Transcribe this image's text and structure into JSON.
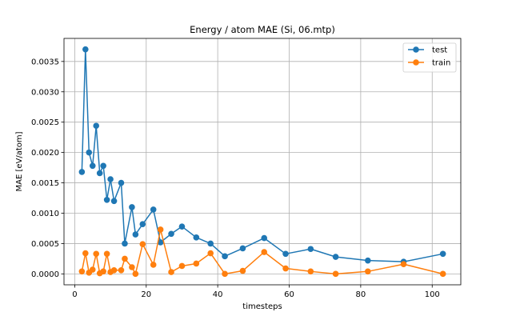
{
  "chart_data": {
    "type": "line",
    "title": "Energy / atom MAE (Si, 06.mtp)",
    "xlabel": "timesteps",
    "ylabel": "MAE [eV/atom]",
    "xlim": [
      -3,
      108
    ],
    "ylim": [
      -0.00018,
      0.00388
    ],
    "x_ticks": [
      0,
      20,
      40,
      60,
      80,
      100
    ],
    "y_ticks": [
      0.0,
      0.0005,
      0.001,
      0.0015,
      0.002,
      0.0025,
      0.003,
      0.0035
    ],
    "x_tick_labels": [
      "0",
      "20",
      "40",
      "60",
      "80",
      "100"
    ],
    "y_tick_labels": [
      "0.0000",
      "0.0005",
      "0.0010",
      "0.0015",
      "0.0020",
      "0.0025",
      "0.0030",
      "0.0035"
    ],
    "grid": true,
    "legend_position": "top-right",
    "series": [
      {
        "name": "test",
        "color": "#1f77b4",
        "x": [
          2,
          3,
          4,
          5,
          6,
          7,
          8,
          9,
          10,
          11,
          13,
          14,
          16,
          17,
          19,
          22,
          24,
          27,
          30,
          34,
          38,
          42,
          47,
          53,
          59,
          66,
          73,
          82,
          92,
          103
        ],
        "y": [
          0.00168,
          0.0037,
          0.002,
          0.00178,
          0.00244,
          0.00166,
          0.00178,
          0.00122,
          0.00156,
          0.0012,
          0.0015,
          0.0005,
          0.0011,
          0.00065,
          0.00082,
          0.00106,
          0.00052,
          0.00066,
          0.00078,
          0.0006,
          0.0005,
          0.00029,
          0.00042,
          0.00059,
          0.00033,
          0.00041,
          0.00028,
          0.00022,
          0.0002,
          0.00033
        ]
      },
      {
        "name": "train",
        "color": "#ff7f0e",
        "x": [
          2,
          3,
          4,
          5,
          6,
          7,
          8,
          9,
          10,
          11,
          13,
          14,
          16,
          17,
          19,
          22,
          24,
          27,
          30,
          34,
          38,
          42,
          47,
          53,
          59,
          66,
          73,
          82,
          92,
          103
        ],
        "y": [
          4e-05,
          0.00034,
          2e-05,
          7e-05,
          0.00033,
          1e-05,
          4e-05,
          0.00033,
          3e-05,
          6e-05,
          6e-05,
          0.00025,
          0.00011,
          0.0,
          0.00049,
          0.00015,
          0.00073,
          3e-05,
          0.00013,
          0.00017,
          0.00034,
          0.0,
          5e-05,
          0.00036,
          9e-05,
          4e-05,
          0.0,
          4e-05,
          0.00016,
          0.0
        ]
      }
    ]
  }
}
